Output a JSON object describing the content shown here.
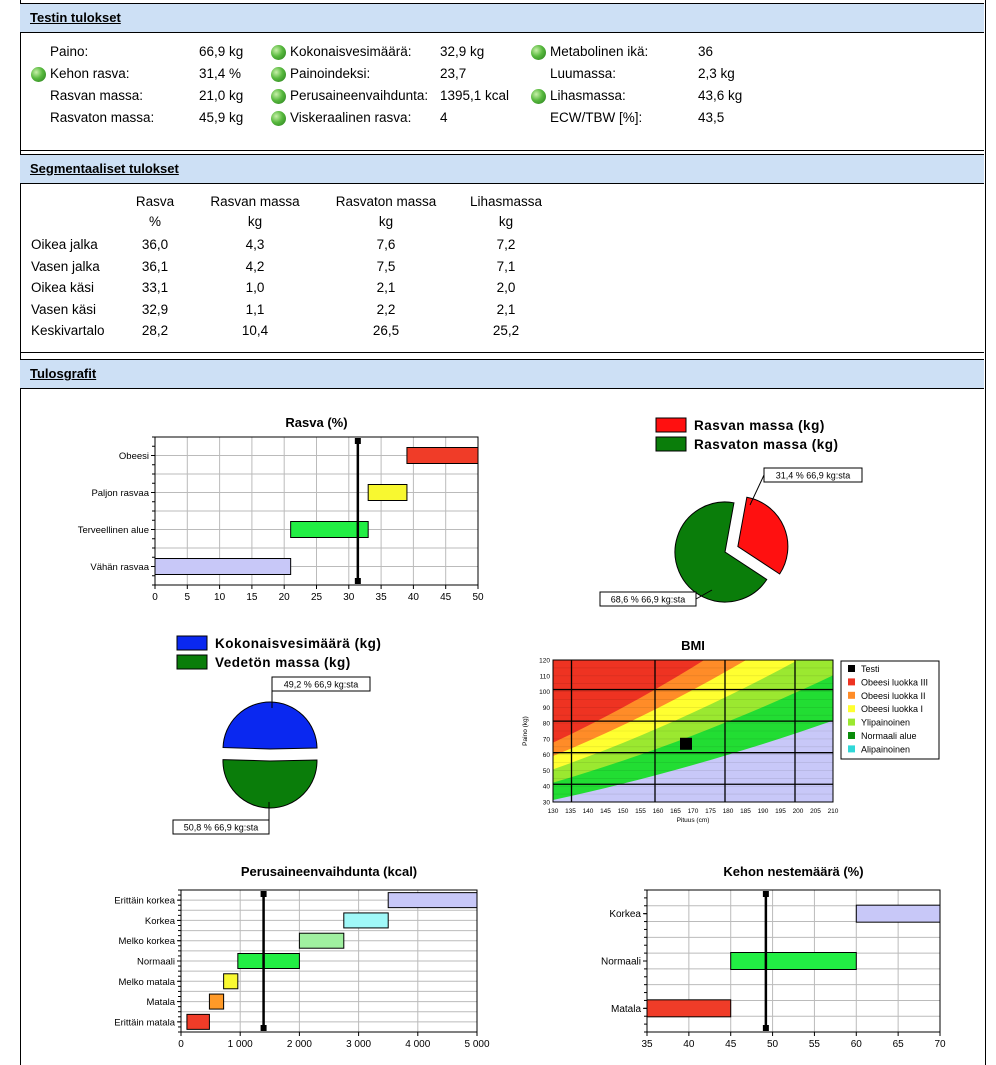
{
  "sections": {
    "results": "Testin tulokset",
    "segmental": "Segmentaaliset tulokset",
    "graphs": "Tulosgrafit"
  },
  "results": {
    "col1": [
      {
        "label": "Paino:",
        "value": "66,9 kg",
        "dot": false
      },
      {
        "label": "Kehon rasva:",
        "value": "31,4 %",
        "dot": true
      },
      {
        "label": "Rasvan massa:",
        "value": "21,0 kg",
        "dot": false
      },
      {
        "label": "Rasvaton massa:",
        "value": "45,9 kg",
        "dot": false
      }
    ],
    "col2": [
      {
        "label": "Kokonaisvesimäärä:",
        "value": "32,9 kg",
        "dot": true
      },
      {
        "label": "Painoindeksi:",
        "value": "23,7",
        "dot": true
      },
      {
        "label": "Perusaineenvaihdunta:",
        "value": "1395,1 kcal",
        "dot": true
      },
      {
        "label": "Viskeraalinen rasva:",
        "value": "4",
        "dot": true
      }
    ],
    "col3": [
      {
        "label": "Metabolinen ikä:",
        "value": "36",
        "dot": true
      },
      {
        "label": "Luumassa:",
        "value": "2,3 kg",
        "dot": false
      },
      {
        "label": "Lihasmassa:",
        "value": "43,6 kg",
        "dot": true
      },
      {
        "label": "ECW/TBW [%]:",
        "value": "43,5",
        "dot": false
      }
    ]
  },
  "segmental": {
    "headers": [
      {
        "top": "Rasva",
        "unit": "%"
      },
      {
        "top": "Rasvan massa",
        "unit": "kg"
      },
      {
        "top": "Rasvaton massa",
        "unit": "kg"
      },
      {
        "top": "Lihasmassa",
        "unit": "kg"
      }
    ],
    "rows": [
      {
        "name": "Oikea jalka",
        "v": [
          "36,0",
          "4,3",
          "7,6",
          "7,2"
        ]
      },
      {
        "name": "Vasen jalka",
        "v": [
          "36,1",
          "4,2",
          "7,5",
          "7,1"
        ]
      },
      {
        "name": "Oikea käsi",
        "v": [
          "33,1",
          "1,0",
          "2,1",
          "2,0"
        ]
      },
      {
        "name": "Vasen käsi",
        "v": [
          "32,9",
          "1,1",
          "2,2",
          "2,1"
        ]
      },
      {
        "name": "Keskivartalo",
        "v": [
          "28,2",
          "10,4",
          "26,5",
          "25,2"
        ]
      }
    ]
  },
  "chart_data": [
    {
      "type": "bar",
      "id": "fat",
      "title": "Rasva (%)",
      "categories": [
        "Vähän rasvaa",
        "Terveellinen alue",
        "Paljon rasvaa",
        "Obeesi"
      ],
      "ranges": [
        [
          0,
          21
        ],
        [
          21,
          33
        ],
        [
          33,
          39
        ],
        [
          39,
          50
        ]
      ],
      "colors": [
        "#c8c8f8",
        "#22ee44",
        "#f8f830",
        "#f03c28"
      ],
      "marker": 31.4,
      "xlim": [
        0,
        50
      ],
      "xticks": [
        0,
        5,
        10,
        15,
        20,
        25,
        30,
        35,
        40,
        45,
        50
      ]
    },
    {
      "type": "pie",
      "id": "fatmass",
      "legend": [
        "Rasvan massa (kg)",
        "Rasvaton massa (kg)"
      ],
      "colors": [
        "#ff1010",
        "#0a7d0a"
      ],
      "values": [
        31.4,
        68.6
      ],
      "labels": [
        "31,4 %  66,9 kg:sta",
        "68,6 %  66,9 kg:sta"
      ]
    },
    {
      "type": "pie",
      "id": "water",
      "legend": [
        "Kokonaisvesimäärä (kg)",
        "Vedetön massa (kg)"
      ],
      "colors": [
        "#0a28f0",
        "#0a7d0a"
      ],
      "values": [
        49.2,
        50.8
      ],
      "labels": [
        "49,2 %  66,9 kg:sta",
        "50,8 %  66,9 kg:sta"
      ]
    },
    {
      "type": "heatmap",
      "id": "bmi",
      "title": "BMI",
      "xlabel": "Pituus (cm)",
      "ylabel": "Paino (kg)",
      "xlim": [
        130,
        210
      ],
      "ylim": [
        30,
        120
      ],
      "xticks": [
        130,
        135,
        140,
        145,
        150,
        155,
        160,
        165,
        170,
        175,
        180,
        185,
        190,
        195,
        200,
        205,
        210
      ],
      "yticks": [
        30,
        40,
        50,
        60,
        70,
        80,
        90,
        100,
        110,
        120
      ],
      "point": {
        "x": 168,
        "y": 66.9
      },
      "legend": [
        {
          "label": "Testi",
          "color": "#000000"
        },
        {
          "label": "Obeesi luokka III",
          "color": "#ee3322"
        },
        {
          "label": "Obeesi luokka II",
          "color": "#ff8c28"
        },
        {
          "label": "Obeesi luokka I",
          "color": "#ffff30"
        },
        {
          "label": "Ylipainoinen",
          "color": "#9be830"
        },
        {
          "label": "Normaali alue",
          "color": "#0a8c0a"
        },
        {
          "label": "Alipainoinen",
          "color": "#30d8d8"
        }
      ]
    },
    {
      "type": "bar",
      "id": "bmr",
      "title": "Perusaineenvaihdunta (kcal)",
      "categories": [
        "Erittäin matala",
        "Matala",
        "Melko matala",
        "Normaali",
        "Melko korkea",
        "Korkea",
        "Erittäin korkea"
      ],
      "ranges": [
        [
          100,
          480
        ],
        [
          480,
          720
        ],
        [
          720,
          960
        ],
        [
          960,
          2000
        ],
        [
          2000,
          2750
        ],
        [
          2750,
          3500
        ],
        [
          3500,
          5000
        ]
      ],
      "colors": [
        "#f03c28",
        "#ff9a28",
        "#f8f830",
        "#22ee44",
        "#a0f0a0",
        "#a0f8f8",
        "#c8c8f8"
      ],
      "marker": 1395.1,
      "xlim": [
        0,
        5000
      ],
      "xticks": [
        0,
        1000,
        2000,
        3000,
        4000,
        5000
      ],
      "xtick_labels": [
        "0",
        "1 000",
        "2 000",
        "3 000",
        "4 000",
        "5 000"
      ]
    },
    {
      "type": "bar",
      "id": "fluid",
      "title": "Kehon nestemäärä (%)",
      "categories": [
        "Matala",
        "Normaali",
        "Korkea"
      ],
      "ranges": [
        [
          35,
          45
        ],
        [
          45,
          60
        ],
        [
          60,
          70
        ]
      ],
      "colors": [
        "#f03c28",
        "#22ee44",
        "#c8c8f8"
      ],
      "marker": 49.2,
      "xlim": [
        35,
        70
      ],
      "xticks": [
        35,
        40,
        45,
        50,
        55,
        60,
        65,
        70
      ]
    }
  ]
}
